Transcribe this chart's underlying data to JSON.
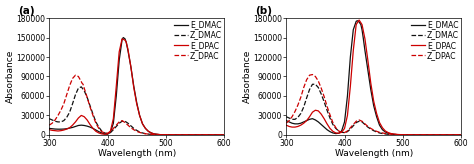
{
  "xlim": [
    300,
    600
  ],
  "ylim": [
    0,
    180000
  ],
  "yticks": [
    0,
    30000,
    60000,
    90000,
    120000,
    150000,
    180000
  ],
  "yticklabels": [
    "0",
    "30000",
    "60000",
    "90000",
    "120000",
    "150000",
    "180000"
  ],
  "xticks": [
    300,
    400,
    500,
    600
  ],
  "xticklabels": [
    "300",
    "400",
    "500",
    "600"
  ],
  "xlabel": "Wavelength (nm)",
  "ylabel": "Absorbance",
  "panel_a_label": "(a)",
  "panel_b_label": "(b)",
  "legend_entries": [
    "E_DMAC",
    "Z_DMAC",
    "E_DPAC",
    "Z_DPAC"
  ],
  "colors": {
    "E_DMAC": "#111111",
    "Z_DMAC": "#111111",
    "E_DPAC": "#cc0000",
    "Z_DPAC": "#cc0000"
  },
  "linestyles": {
    "E_DMAC": "solid",
    "Z_DMAC": "dashed",
    "E_DPAC": "solid",
    "Z_DPAC": "dashed"
  },
  "linewidth": 0.9,
  "background_color": "#ffffff",
  "font_size": 6.5,
  "tick_fontsize": 5.5,
  "legend_fontsize": 5.5,
  "panel_a": {
    "E_DMAC": {
      "x": [
        300,
        305,
        310,
        315,
        320,
        325,
        330,
        335,
        340,
        345,
        350,
        355,
        360,
        365,
        370,
        375,
        380,
        385,
        390,
        395,
        400,
        405,
        410,
        415,
        420,
        425,
        427,
        430,
        432,
        435,
        440,
        445,
        450,
        455,
        460,
        465,
        470,
        475,
        480,
        490,
        500,
        520,
        540,
        560,
        580,
        600
      ],
      "y": [
        10000,
        9500,
        9000,
        8800,
        8800,
        9000,
        9500,
        10500,
        11500,
        13000,
        14500,
        15000,
        14500,
        13500,
        12000,
        10000,
        7500,
        5000,
        3000,
        1500,
        1000,
        4000,
        18000,
        60000,
        115000,
        147000,
        150000,
        148000,
        143000,
        130000,
        105000,
        75000,
        50000,
        30000,
        17000,
        10000,
        5500,
        3000,
        1500,
        400,
        100,
        20,
        5,
        2,
        1,
        0
      ]
    },
    "Z_DMAC": {
      "x": [
        300,
        305,
        310,
        315,
        320,
        325,
        330,
        335,
        340,
        345,
        350,
        355,
        360,
        365,
        370,
        375,
        380,
        385,
        390,
        395,
        400,
        405,
        410,
        415,
        420,
        425,
        430,
        435,
        440,
        445,
        450,
        455,
        460,
        465,
        470,
        475,
        480,
        490,
        500,
        520,
        540,
        560,
        580,
        600
      ],
      "y": [
        25000,
        23000,
        21000,
        20000,
        20000,
        22000,
        27000,
        35000,
        48000,
        62000,
        72000,
        74000,
        68000,
        58000,
        45000,
        32000,
        20000,
        12000,
        6000,
        3000,
        2000,
        3500,
        8000,
        13000,
        18000,
        21000,
        21000,
        18000,
        14000,
        10000,
        7000,
        4500,
        3000,
        1800,
        1200,
        800,
        500,
        200,
        80,
        20,
        5,
        2,
        1,
        0
      ]
    },
    "E_DPAC": {
      "x": [
        300,
        305,
        310,
        315,
        320,
        325,
        330,
        335,
        340,
        345,
        350,
        355,
        360,
        365,
        370,
        375,
        380,
        385,
        390,
        395,
        400,
        405,
        410,
        415,
        420,
        425,
        430,
        432,
        435,
        440,
        445,
        450,
        455,
        460,
        465,
        470,
        475,
        480,
        490,
        500,
        520,
        540,
        560,
        580,
        600
      ],
      "y": [
        8000,
        7000,
        6500,
        6000,
        6500,
        7500,
        9000,
        11000,
        15000,
        20000,
        26000,
        30000,
        28000,
        23000,
        16000,
        10000,
        5500,
        3000,
        1500,
        1000,
        1500,
        6000,
        25000,
        75000,
        128000,
        148000,
        146000,
        143000,
        132000,
        105000,
        73000,
        48000,
        30000,
        17000,
        10000,
        5500,
        3000,
        1500,
        400,
        100,
        20,
        5,
        2,
        1,
        0
      ]
    },
    "Z_DPAC": {
      "x": [
        300,
        305,
        310,
        315,
        320,
        325,
        330,
        335,
        340,
        345,
        350,
        355,
        356,
        358,
        360,
        365,
        370,
        375,
        380,
        385,
        390,
        395,
        400,
        405,
        410,
        415,
        420,
        425,
        430,
        435,
        440,
        445,
        450,
        455,
        460,
        465,
        470,
        475,
        480,
        490,
        500,
        520,
        540,
        560,
        580,
        600
      ],
      "y": [
        15000,
        18000,
        23000,
        30000,
        38000,
        48000,
        62000,
        76000,
        87000,
        92000,
        90000,
        82000,
        80000,
        78000,
        72000,
        58000,
        43000,
        30000,
        18000,
        10000,
        5000,
        3000,
        2500,
        5000,
        10000,
        15000,
        20000,
        22000,
        19000,
        15000,
        11000,
        8000,
        5500,
        3800,
        2600,
        1800,
        1200,
        800,
        500,
        200,
        80,
        25,
        8,
        3,
        1,
        0
      ]
    }
  },
  "panel_b": {
    "E_DMAC": {
      "x": [
        300,
        305,
        310,
        315,
        320,
        325,
        330,
        335,
        340,
        345,
        350,
        355,
        360,
        365,
        370,
        375,
        380,
        385,
        390,
        395,
        400,
        405,
        410,
        415,
        420,
        422,
        425,
        428,
        430,
        432,
        435,
        440,
        445,
        450,
        455,
        460,
        465,
        470,
        475,
        480,
        490,
        500,
        520,
        540,
        560,
        580,
        600
      ],
      "y": [
        22000,
        20000,
        18000,
        17000,
        17000,
        18000,
        20000,
        22000,
        24000,
        25000,
        23000,
        20000,
        16000,
        12000,
        8000,
        5000,
        3000,
        2000,
        2500,
        6000,
        20000,
        60000,
        120000,
        162000,
        175000,
        176000,
        174000,
        170000,
        162000,
        150000,
        130000,
        100000,
        70000,
        45000,
        28000,
        15000,
        8000,
        4500,
        2500,
        1300,
        400,
        100,
        20,
        5,
        2,
        1,
        0
      ]
    },
    "Z_DMAC": {
      "x": [
        300,
        305,
        310,
        315,
        320,
        325,
        330,
        335,
        340,
        345,
        350,
        355,
        360,
        365,
        370,
        375,
        380,
        385,
        390,
        395,
        400,
        405,
        410,
        415,
        420,
        425,
        430,
        435,
        440,
        445,
        450,
        455,
        460,
        465,
        470,
        475,
        480,
        490,
        500,
        520,
        540,
        560,
        580,
        600
      ],
      "y": [
        28000,
        26000,
        24000,
        24000,
        27000,
        33000,
        43000,
        57000,
        70000,
        78000,
        78000,
        73000,
        63000,
        51000,
        38000,
        26000,
        16000,
        10000,
        6000,
        4000,
        3500,
        5000,
        9000,
        14000,
        19000,
        21000,
        20000,
        16000,
        12000,
        9000,
        6500,
        4500,
        3000,
        2000,
        1400,
        900,
        600,
        250,
        100,
        25,
        8,
        3,
        1,
        0
      ]
    },
    "E_DPAC": {
      "x": [
        300,
        305,
        310,
        315,
        320,
        325,
        330,
        335,
        340,
        345,
        350,
        355,
        360,
        365,
        370,
        375,
        380,
        385,
        390,
        395,
        400,
        405,
        410,
        415,
        420,
        425,
        430,
        435,
        440,
        445,
        450,
        455,
        460,
        465,
        470,
        475,
        480,
        490,
        500,
        520,
        540,
        560,
        580,
        600
      ],
      "y": [
        15000,
        13000,
        12000,
        12000,
        13000,
        15000,
        18000,
        22000,
        28000,
        35000,
        38000,
        37000,
        32000,
        25000,
        17000,
        10000,
        5500,
        3000,
        2500,
        4000,
        10000,
        30000,
        75000,
        130000,
        170000,
        177000,
        170000,
        148000,
        115000,
        80000,
        52000,
        33000,
        19000,
        11000,
        6000,
        3500,
        2000,
        700,
        200,
        40,
        10,
        3,
        1,
        0
      ]
    },
    "Z_DPAC": {
      "x": [
        300,
        305,
        310,
        315,
        320,
        325,
        330,
        335,
        340,
        345,
        350,
        355,
        360,
        365,
        370,
        375,
        380,
        385,
        390,
        395,
        400,
        405,
        410,
        415,
        420,
        425,
        430,
        435,
        440,
        445,
        450,
        455,
        460,
        465,
        470,
        475,
        480,
        490,
        500,
        520,
        540,
        560,
        580,
        600
      ],
      "y": [
        18000,
        22000,
        28000,
        36000,
        46000,
        58000,
        73000,
        85000,
        92000,
        93000,
        90000,
        83000,
        72000,
        59000,
        44000,
        31000,
        19000,
        11000,
        6000,
        4000,
        3500,
        6000,
        11000,
        16000,
        21000,
        23000,
        21000,
        17000,
        13000,
        10000,
        7500,
        5500,
        4000,
        3000,
        2200,
        1600,
        1100,
        500,
        180,
        45,
        12,
        4,
        1,
        0
      ]
    }
  }
}
